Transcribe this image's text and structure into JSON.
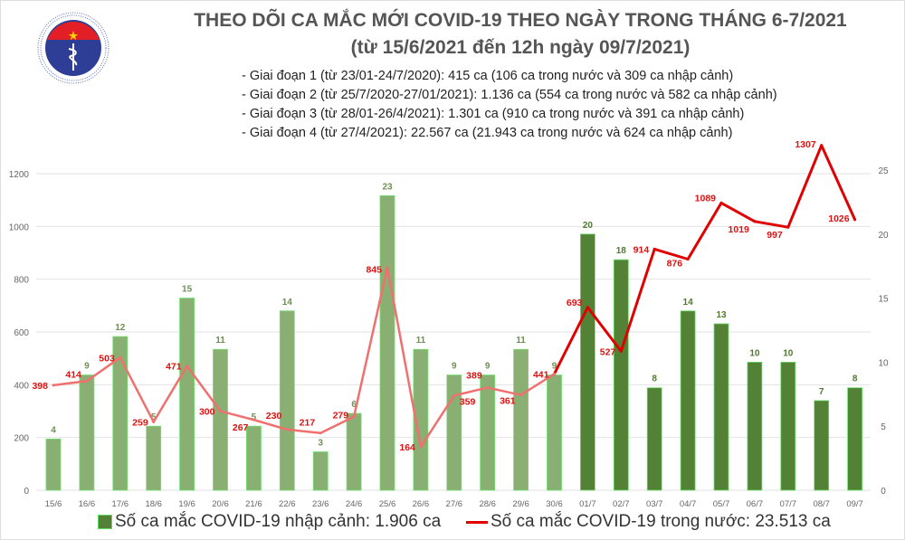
{
  "header": {
    "title_line1": "THEO DÕI CA MẮC MỚI COVID-19 THEO NGÀY TRONG THÁNG 6-7/2021",
    "title_line2": "(từ 15/6/2021 đến 12h ngày 09/7/2021)",
    "notes": [
      "- Giai đoạn 1 (từ 23/01-24/7/2020): 415 ca (106 ca trong nước và 309 ca nhập cảnh)",
      "- Giai đoạn 2 (từ 25/7/2020-27/01/2021): 1.136 ca (554 ca trong nước và 582 ca nhập cảnh)",
      "- Giai đoạn 3 (từ 28/01-26/4/2021): 1.301 ca (910 ca trong nước và 391 ca nhập cảnh)",
      "- Giai đoạn 4 (từ 27/4/2021): 22.567 ca (21.943 ca trong nước và 624 ca nhập cảnh)"
    ]
  },
  "logo": {
    "top_text": "BỘ Y TẾ",
    "bottom_text": "MINISTRY OF HEALTH"
  },
  "chart_data": {
    "type": "bar+line",
    "categories": [
      "15/6",
      "16/6",
      "17/6",
      "18/6",
      "19/6",
      "20/6",
      "21/6",
      "22/6",
      "23/6",
      "24/6",
      "25/6",
      "26/6",
      "27/6",
      "28/6",
      "29/6",
      "30/6",
      "01/7",
      "02/7",
      "03/7",
      "04/7",
      "05/7",
      "06/7",
      "07/7",
      "08/7",
      "09/7"
    ],
    "series": [
      {
        "name": "Số ca mắc COVID-19 nhập cảnh: 1.906 ca",
        "type": "bar",
        "axis": "right",
        "values": [
          4,
          9,
          12,
          5,
          15,
          11,
          5,
          14,
          3,
          6,
          23,
          11,
          9,
          9,
          11,
          9,
          20,
          18,
          8,
          14,
          13,
          10,
          10,
          7,
          8
        ],
        "color_early": "#8aaf72",
        "color_late": "#538135"
      },
      {
        "name": "Số ca mắc COVID-19 trong nước: 23.513 ca",
        "type": "line",
        "axis": "left",
        "values": [
          398,
          414,
          503,
          259,
          471,
          300,
          267,
          230,
          217,
          279,
          845,
          164,
          359,
          389,
          361,
          441,
          693,
          527,
          914,
          876,
          1089,
          1019,
          997,
          1307,
          1026
        ],
        "color_early": "#f07070",
        "color_late": "#e00000"
      }
    ],
    "y_left": {
      "ylim": [
        0,
        1200
      ],
      "ticks": [
        0,
        200,
        400,
        600,
        800,
        1000,
        1200
      ]
    },
    "y_right": {
      "ylim": [
        0,
        25
      ],
      "ticks": [
        0,
        5,
        10,
        15,
        20,
        25
      ]
    },
    "grid": true,
    "legend_placement": "bottom"
  }
}
